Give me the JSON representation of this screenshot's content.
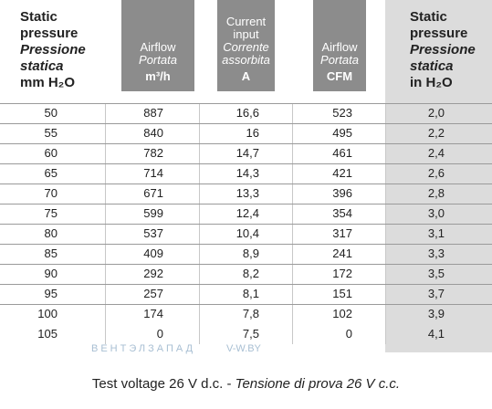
{
  "header": [
    {
      "lines": [
        "Static",
        "pressure",
        "Pressione",
        "statica",
        "mm H₂O"
      ]
    },
    {
      "lines": [
        "Airflow",
        "Portata",
        "m³/h"
      ]
    },
    {
      "lines": [
        "Current",
        "input",
        "Corrente",
        "assorbita",
        "A"
      ]
    },
    {
      "lines": [
        "Airflow",
        "Portata",
        "CFM"
      ]
    },
    {
      "lines": [
        "Static",
        "pressure",
        "Pressione",
        "statica",
        "in H₂O"
      ]
    }
  ],
  "table": {
    "rows": [
      [
        "50",
        "887",
        "16,6",
        "523",
        "2,0"
      ],
      [
        "55",
        "840",
        "16",
        "495",
        "2,2"
      ],
      [
        "60",
        "782",
        "14,7",
        "461",
        "2,4"
      ],
      [
        "65",
        "714",
        "14,3",
        "421",
        "2,6"
      ],
      [
        "70",
        "671",
        "13,3",
        "396",
        "2,8"
      ],
      [
        "75",
        "599",
        "12,4",
        "354",
        "3,0"
      ],
      [
        "80",
        "537",
        "10,4",
        "317",
        "3,1"
      ],
      [
        "85",
        "409",
        "8,9",
        "241",
        "3,3"
      ],
      [
        "90",
        "292",
        "8,2",
        "172",
        "3,5"
      ],
      [
        "95",
        "257",
        "8,1",
        "151",
        "3,7"
      ],
      [
        "100",
        "174",
        "7,8",
        "102",
        "3,9"
      ],
      [
        "105",
        "0",
        "7,5",
        "0",
        "4,1"
      ]
    ]
  },
  "watermark": {
    "left": "ВЕНТЭЛЗАПАД",
    "right": "V-W.BY"
  },
  "footer": {
    "normal": "Test voltage 26 V d.c. -",
    "italic": "Tensione di prova 26 V c.c."
  }
}
